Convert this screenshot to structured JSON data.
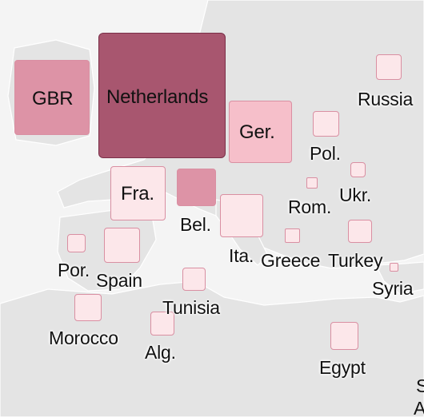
{
  "palette": {
    "level1": "#fce7ea",
    "level2": "#f6bfca",
    "level3": "#dd93a6",
    "level4": "#a8566f",
    "border_light": "#d98fa2",
    "border_dark": "#7a2f48"
  },
  "countries": [
    {
      "key": "gbr",
      "label": "GBR",
      "level": 3
    },
    {
      "key": "netherlands",
      "label": "Netherlands",
      "level": 4
    },
    {
      "key": "germany",
      "label": "Ger.",
      "level": 2
    },
    {
      "key": "russia",
      "label": "Russia",
      "level": 1
    },
    {
      "key": "poland",
      "label": "Pol.",
      "level": 1
    },
    {
      "key": "ukraine",
      "label": "Ukr.",
      "level": 1
    },
    {
      "key": "france",
      "label": "Fra.",
      "level": 1
    },
    {
      "key": "belgium",
      "label": "Bel.",
      "level": 3
    },
    {
      "key": "romania",
      "label": "Rom.",
      "level": 1
    },
    {
      "key": "italy",
      "label": "Ita.",
      "level": 1
    },
    {
      "key": "greece",
      "label": "Greece",
      "level": 1
    },
    {
      "key": "turkey",
      "label": "Turkey",
      "level": 1
    },
    {
      "key": "syria",
      "label": "Syria",
      "level": 1
    },
    {
      "key": "portugal",
      "label": "Por.",
      "level": 1
    },
    {
      "key": "spain",
      "label": "Spain",
      "level": 1
    },
    {
      "key": "tunisia",
      "label": "Tunisia",
      "level": 1
    },
    {
      "key": "morocco",
      "label": "Morocco",
      "level": 1
    },
    {
      "key": "algeria",
      "label": "Alg.",
      "level": 1
    },
    {
      "key": "egypt",
      "label": "Egypt",
      "level": 1
    }
  ],
  "edge_fragments": [
    "S",
    "A"
  ]
}
